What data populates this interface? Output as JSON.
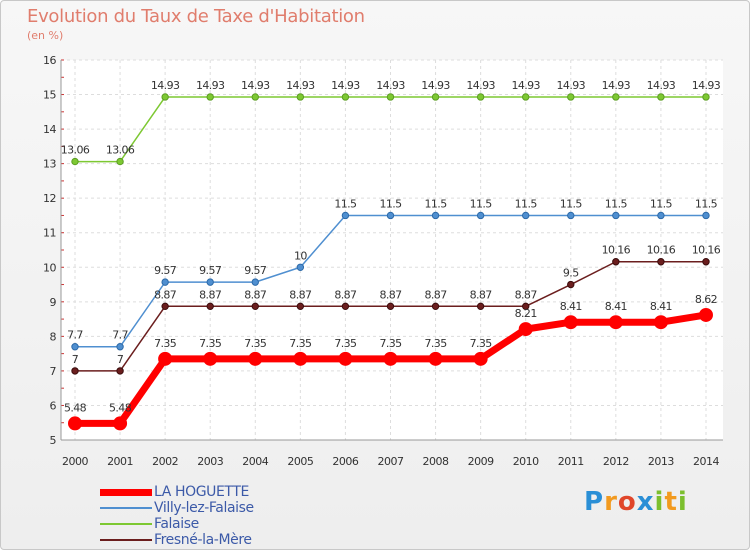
{
  "chart_data": {
    "type": "line",
    "title": "Evolution du Taux de Taxe d'Habitation",
    "ylabel": "(en %)",
    "xlabel": "",
    "ylim": [
      5,
      16
    ],
    "yticks": [
      5,
      6,
      7,
      8,
      9,
      10,
      11,
      12,
      13,
      14,
      15,
      16
    ],
    "x": [
      "2000",
      "2001",
      "2002",
      "2003",
      "2004",
      "2005",
      "2006",
      "2007",
      "2008",
      "2009",
      "2010",
      "2011",
      "2012",
      "2013",
      "2014"
    ],
    "grid": true,
    "legend_position": "bottom-left",
    "series": [
      {
        "name": "Falaise",
        "color": "#7dc832",
        "values": [
          13.06,
          13.06,
          14.93,
          14.93,
          14.93,
          14.93,
          14.93,
          14.93,
          14.93,
          14.93,
          14.93,
          14.93,
          14.93,
          14.93,
          14.93
        ],
        "labels": [
          "13.06",
          "13.06",
          "14.93",
          "14.93",
          "14.93",
          "14.93",
          "14.93",
          "14.93",
          "14.93",
          "14.93",
          "14.93",
          "14.93",
          "14.93",
          "14.93",
          "14.93"
        ]
      },
      {
        "name": "Villy-lez-Falaise",
        "color": "#4f8fd0",
        "values": [
          7.7,
          7.7,
          9.57,
          9.57,
          9.57,
          10,
          11.5,
          11.5,
          11.5,
          11.5,
          11.5,
          11.5,
          11.5,
          11.5,
          11.5
        ],
        "labels": [
          "7.7",
          "7.7",
          "9.57",
          "9.57",
          "9.57",
          "10",
          "11.5",
          "11.5",
          "11.5",
          "11.5",
          "11.5",
          "11.5",
          "11.5",
          "11.5",
          "11.5"
        ]
      },
      {
        "name": "Fresné-la-Mère",
        "color": "#6b1e1e",
        "values": [
          7,
          7,
          8.87,
          8.87,
          8.87,
          8.87,
          8.87,
          8.87,
          8.87,
          8.87,
          8.87,
          9.5,
          10.16,
          10.16,
          10.16
        ],
        "labels": [
          "7",
          "7",
          "8.87",
          "8.87",
          "8.87",
          "8.87",
          "8.87",
          "8.87",
          "8.87",
          "8.87",
          "8.87",
          "9.5",
          "10.16",
          "10.16",
          "10.16"
        ]
      },
      {
        "name": "LA HOGUETTE",
        "color": "#ff0000",
        "values": [
          5.48,
          5.48,
          7.35,
          7.35,
          7.35,
          7.35,
          7.35,
          7.35,
          7.35,
          7.35,
          8.21,
          8.41,
          8.41,
          8.41,
          8.62
        ],
        "labels": [
          "5.48",
          "5.48",
          "7.35",
          "7.35",
          "7.35",
          "7.35",
          "7.35",
          "7.35",
          "7.35",
          "7.35",
          "8.21",
          "8.41",
          "8.41",
          "8.41",
          "8.62"
        ]
      }
    ],
    "legend_order": [
      "LA HOGUETTE",
      "Villy-lez-Falaise",
      "Falaise",
      "Fresné-la-Mère"
    ]
  },
  "logo": {
    "letters": [
      "P",
      "r",
      "o",
      "x",
      "i",
      "t",
      "i"
    ],
    "colors": [
      "#2a8fd6",
      "#f29a1f",
      "#e0462a",
      "#2a8fd6",
      "#7cbf2e",
      "#f29a1f",
      "#7cbf2e"
    ]
  }
}
